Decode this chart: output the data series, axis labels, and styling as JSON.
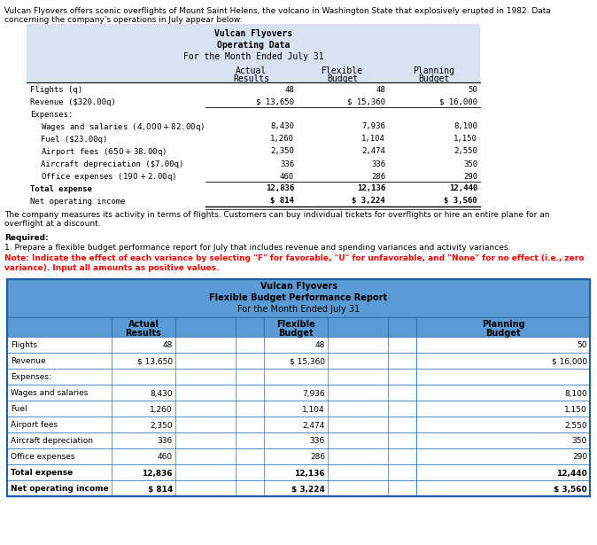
{
  "intro_lines": [
    "Vulcan Flyovers offers scenic overflights of Mount Saint Helens, the volcano in Washington State that explosively erupted in 1982. Data",
    "concerning the company’s operations in July appear below:"
  ],
  "t1_title": [
    "Vulcan Flyovers",
    "Operating Data",
    "For the Month Ended July 31"
  ],
  "t1_col_headers": [
    [
      "Actual",
      "Results"
    ],
    [
      "Flexible",
      "Budget"
    ],
    [
      "Planning",
      "Budget"
    ]
  ],
  "t1_rows": [
    {
      "label": "Flights (q)",
      "indent": 0,
      "vals": [
        "48",
        "48",
        "50"
      ],
      "bold": false
    },
    {
      "label": "Revenue ($320.00q)",
      "indent": 0,
      "vals": [
        "$ 13,650",
        "$ 15,360",
        "$ 16,000"
      ],
      "bold": false
    },
    {
      "label": "Expenses:",
      "indent": 0,
      "vals": [
        "",
        "",
        ""
      ],
      "bold": false
    },
    {
      "label": "Wages and salaries ($4,000 + $82.00q)",
      "indent": 1,
      "vals": [
        "8,430",
        "7,936",
        "8,100"
      ],
      "bold": false
    },
    {
      "label": "Fuel ($23.00q)",
      "indent": 1,
      "vals": [
        "1,260",
        "1,104",
        "1,150"
      ],
      "bold": false
    },
    {
      "label": "Airport fees ($650 + $38.00q)",
      "indent": 1,
      "vals": [
        "2,350",
        "2,474",
        "2,550"
      ],
      "bold": false
    },
    {
      "label": "Aircraft depreciation ($7.00q)",
      "indent": 1,
      "vals": [
        "336",
        "336",
        "350"
      ],
      "bold": false
    },
    {
      "label": "Office expenses ($190 + $2.00q)",
      "indent": 1,
      "vals": [
        "460",
        "286",
        "290"
      ],
      "bold": false
    },
    {
      "label": "Total expense",
      "indent": 0,
      "vals": [
        "12,836",
        "12,136",
        "12,440"
      ],
      "bold": false
    },
    {
      "label": "Net operating income",
      "indent": 0,
      "vals": [
        "$ 814",
        "$ 3,224",
        "$ 3,560"
      ],
      "bold": false
    }
  ],
  "mid_lines": [
    "The company measures its activity in terms of flights. Customers can buy individual tickets for overflights or hire an entire plane for an",
    "overflight at a discount."
  ],
  "req_lines": [
    "Required:",
    "1. Prepare a flexible budget performance report for July that includes revenue and spending variances and activity variances."
  ],
  "note_lines": [
    "Note: Indicate the effect of each variance by selecting \"F\" for favorable, \"U\" for unfavorable, and \"None\" for no effect (i.e., zero",
    "variance). Input all amounts as positive values."
  ],
  "t2_title": [
    "Vulcan Flyovers",
    "Flexible Budget Performance Report",
    "For the Month Ended July 31"
  ],
  "t2_col_headers": [
    [
      "Actual",
      "Results"
    ],
    [
      "Flexible",
      "Budget"
    ],
    [
      "Planning",
      "Budget"
    ]
  ],
  "t2_rows": [
    {
      "label": "Flights",
      "v_act": "48",
      "v_flex": "48",
      "v_plan": "50",
      "bold": false
    },
    {
      "label": "Revenue",
      "v_act": "$ 13,650",
      "v_flex": "$ 15,360",
      "v_plan": "$ 16,000",
      "bold": false
    },
    {
      "label": "Expenses:",
      "v_act": "",
      "v_flex": "",
      "v_plan": "",
      "bold": false
    },
    {
      "label": "Wages and salaries",
      "v_act": "8,430",
      "v_flex": "7,936",
      "v_plan": "8,100",
      "bold": false
    },
    {
      "label": "Fuel",
      "v_act": "1,260",
      "v_flex": "1,104",
      "v_plan": "1,150",
      "bold": false
    },
    {
      "label": "Airport fees",
      "v_act": "2,350",
      "v_flex": "2,474",
      "v_plan": "2,550",
      "bold": false
    },
    {
      "label": "Aircraft depreciation",
      "v_act": "336",
      "v_flex": "336",
      "v_plan": "350",
      "bold": false
    },
    {
      "label": "Office expenses",
      "v_act": "460",
      "v_flex": "286",
      "v_plan": "290",
      "bold": false
    },
    {
      "label": "Total expense",
      "v_act": "12,836",
      "v_flex": "12,136",
      "v_plan": "12,440",
      "bold": true
    },
    {
      "label": "Net operating income",
      "v_act": "$ 814",
      "v_flex": "$ 3,224",
      "v_plan": "$ 3,560",
      "bold": true
    }
  ],
  "t1_bg": "#d9e2f0",
  "t2_hdr_bg": "#5b9bd5",
  "t2_cell_bg": "#ffffff",
  "t2_border": "#2e75b6",
  "mono_font": "DejaVu Sans Mono"
}
